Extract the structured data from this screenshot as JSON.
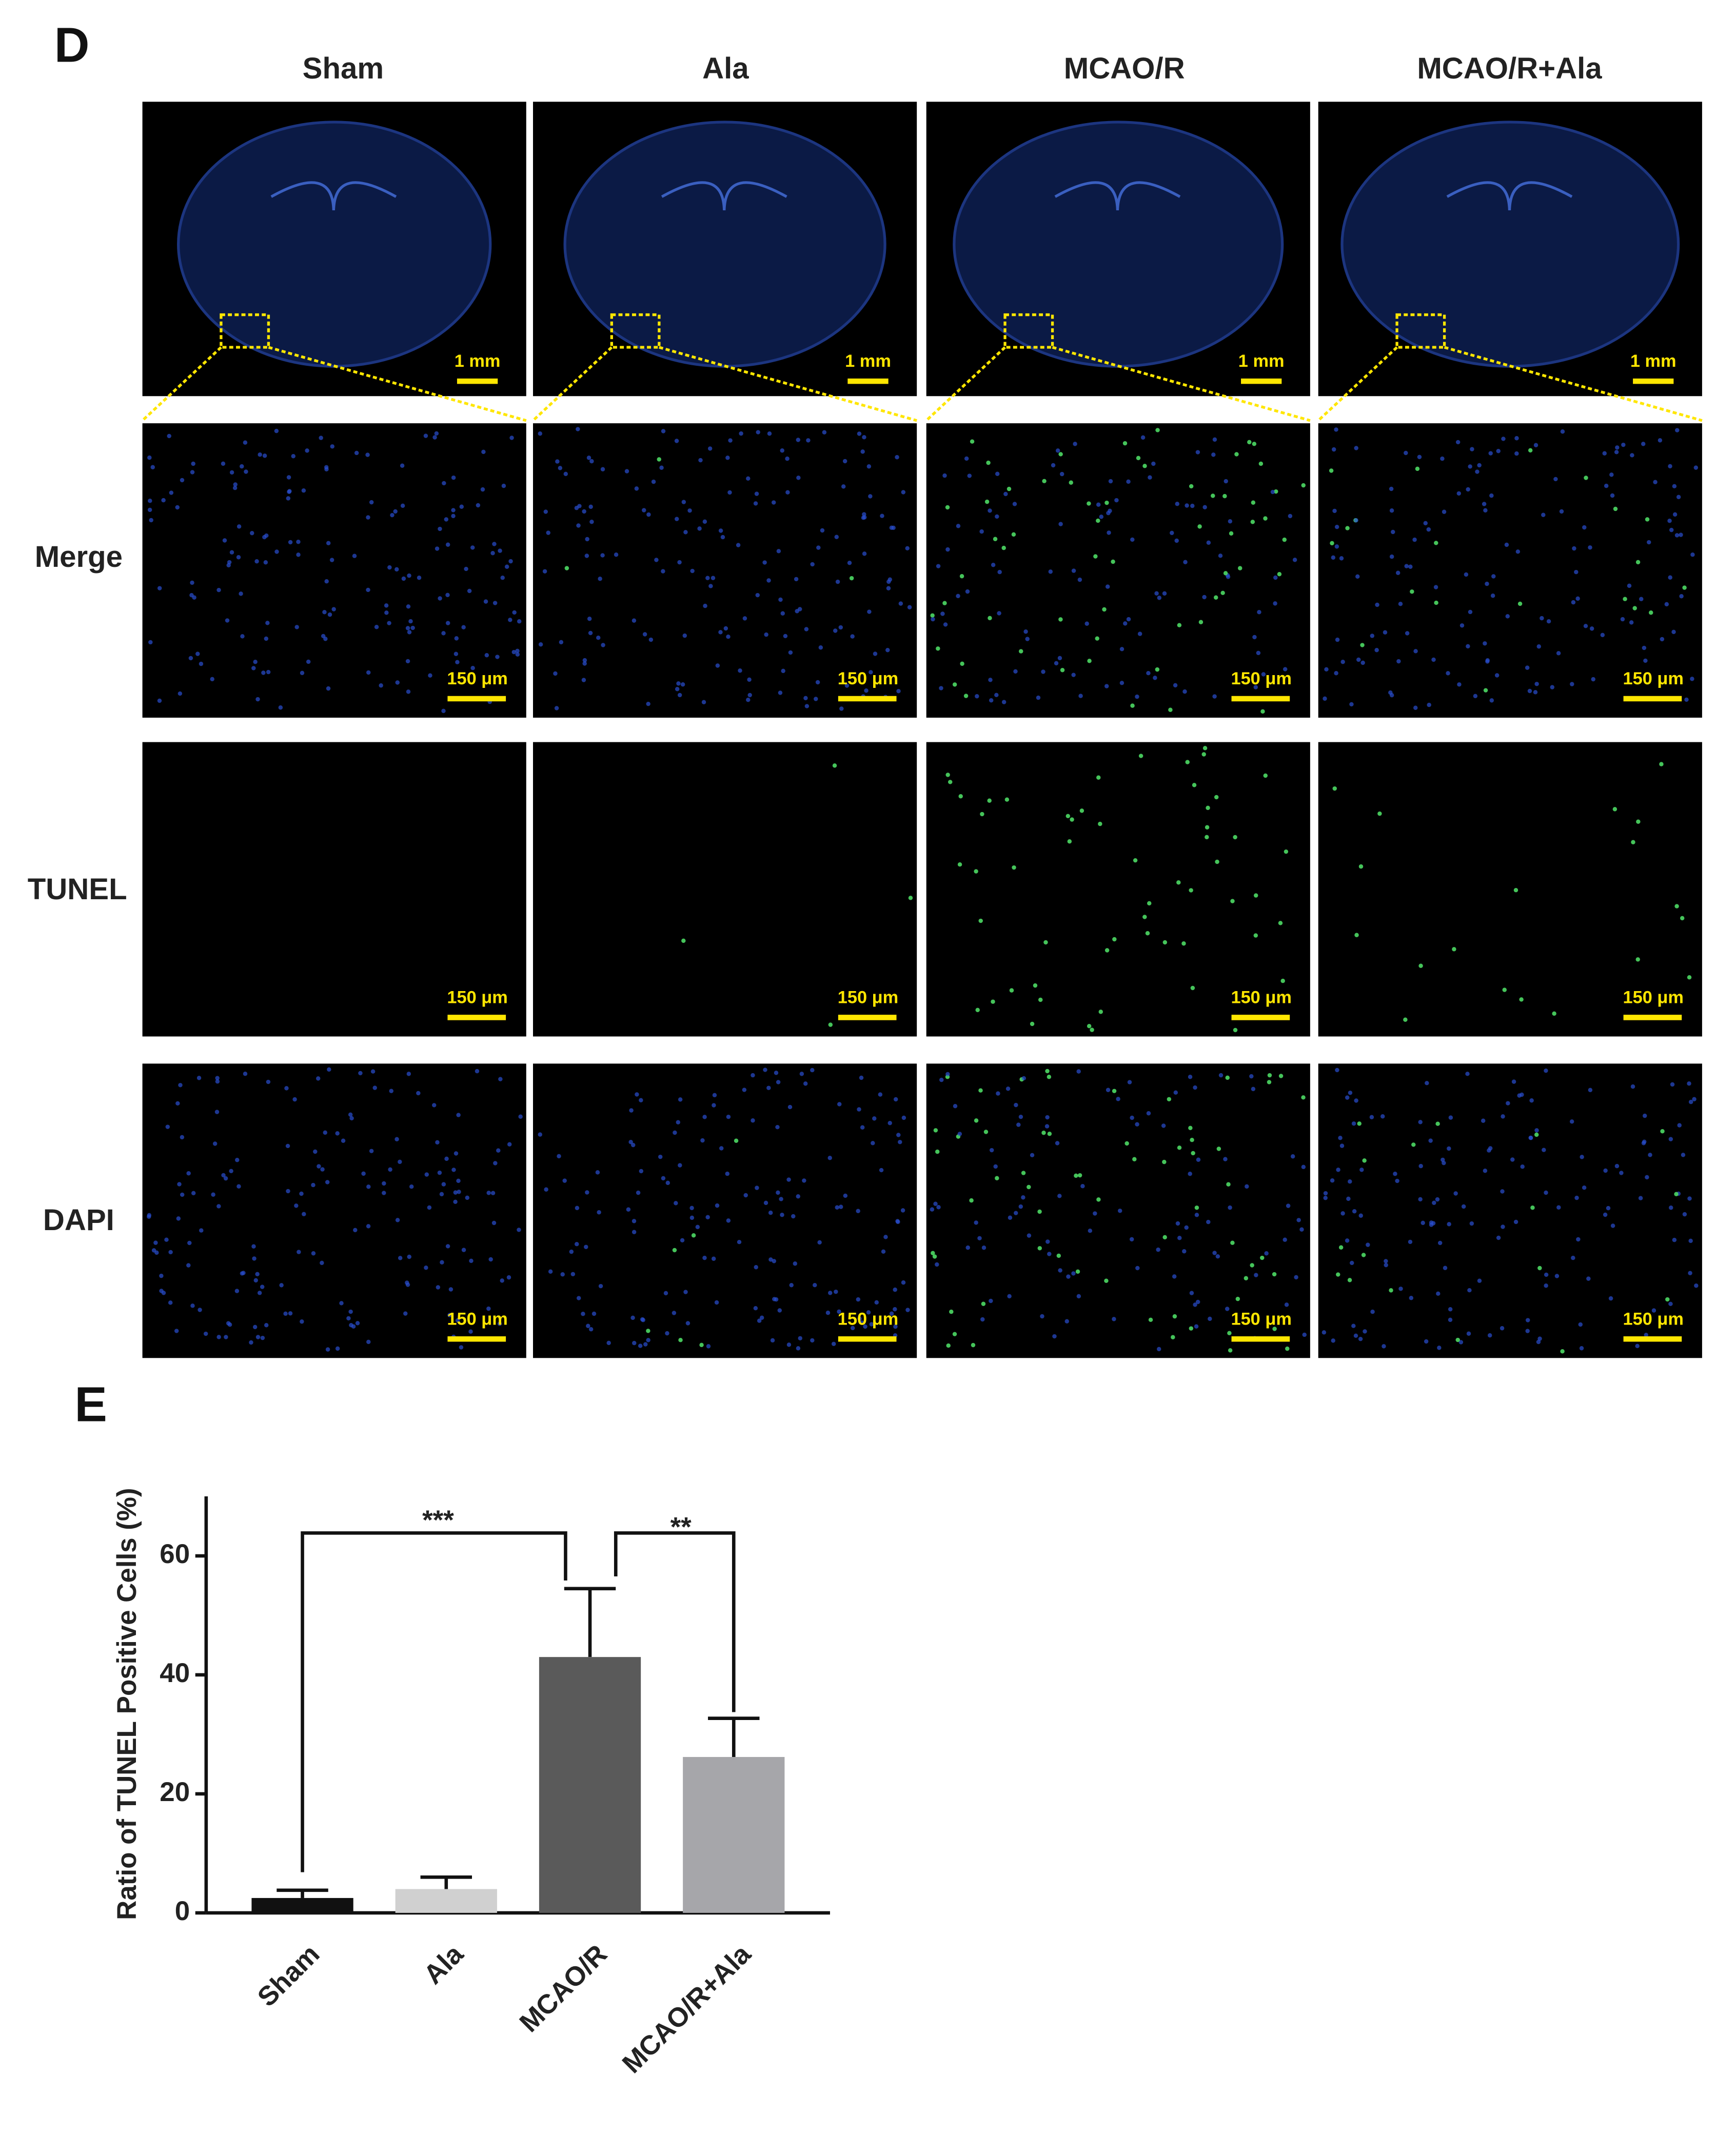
{
  "panel_d": {
    "label": "D",
    "columns": [
      "Sham",
      "Ala",
      "MCAO/R",
      "MCAO/R+Ala"
    ],
    "rows": [
      "Merge",
      "TUNEL",
      "DAPI"
    ],
    "scale_labels": [
      "1 mm",
      "150 μm"
    ]
  },
  "chart_data": {
    "type": "bar",
    "panel_label": "E",
    "ylabel": "Ratio of TUNEL Positive Cells (%)",
    "categories": [
      "Sham",
      "Ala",
      "MCAO/R",
      "MCAO/R+Ala"
    ],
    "values": [
      2.5,
      4,
      43,
      26.2
    ],
    "errors": [
      1.3,
      2,
      11.5,
      6.5
    ],
    "colors": [
      "#111111",
      "#d0d0d0",
      "#5a5a5a",
      "#a6a6aa"
    ],
    "ylim": [
      0,
      70
    ],
    "yticks": [
      0,
      20,
      40,
      60
    ],
    "annotations": [
      "***",
      "**"
    ]
  }
}
